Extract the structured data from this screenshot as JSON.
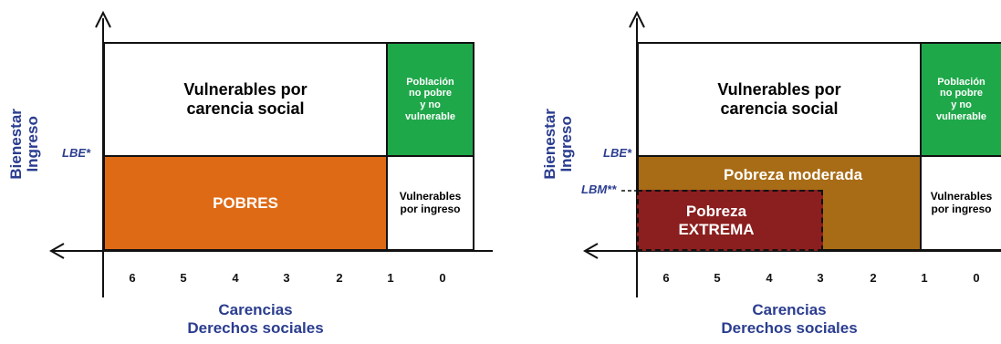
{
  "left": {
    "y_axis_label": "Bienestar\nIngreso",
    "line_label_lbe": "LBE*",
    "box_vulnerables_carencia": "Vulnerables por\ncarencia social",
    "box_no_pobre": "Población\nno pobre\ny no\nvulnerable",
    "box_pobres": "POBRES",
    "box_vulnerables_ingreso": "Vulnerables\npor ingreso",
    "ticks": [
      "6",
      "5",
      "4",
      "3",
      "2",
      "1",
      "0"
    ],
    "x_axis_label": "Carencias\nDerechos sociales"
  },
  "right": {
    "y_axis_label": "Bienestar\nIngreso",
    "line_label_lbe": "LBE*",
    "line_label_lbm": "LBM**",
    "box_vulnerables_carencia": "Vulnerables por\ncarencia social",
    "box_no_pobre": "Población\nno pobre\ny no\nvulnerable",
    "box_pobreza_moderada": "Pobreza moderada",
    "box_pobreza_extrema": "Pobreza\nEXTREMA",
    "box_vulnerables_ingreso": "Vulnerables\npor ingreso",
    "ticks": [
      "6",
      "5",
      "4",
      "3",
      "2",
      "1",
      "0"
    ],
    "x_axis_label": "Carencias\nDerechos sociales"
  },
  "colors": {
    "green": "#1fa84a",
    "orange": "#df6a16",
    "brown": "#a86c16",
    "dark_red": "#8b1e1e",
    "label_blue": "#2b3d8f"
  }
}
